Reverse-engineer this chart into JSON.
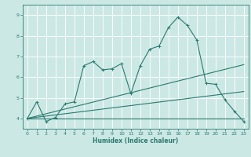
{
  "xlabel": "Humidex (Indice chaleur)",
  "bg_color": "#cce8e5",
  "grid_color": "#ffffff",
  "line_color": "#2a7a6f",
  "xlim": [
    -0.5,
    23.5
  ],
  "ylim": [
    3.5,
    9.5
  ],
  "xticks": [
    0,
    1,
    2,
    3,
    4,
    5,
    6,
    7,
    8,
    9,
    10,
    11,
    12,
    13,
    14,
    15,
    16,
    17,
    18,
    19,
    20,
    21,
    22,
    23
  ],
  "yticks": [
    4,
    5,
    6,
    7,
    8,
    9
  ],
  "series1_x": [
    0,
    1,
    2,
    3,
    4,
    5,
    6,
    7,
    8,
    9,
    10,
    11,
    12,
    13,
    14,
    15,
    16,
    17,
    18,
    19,
    20,
    21,
    22,
    23
  ],
  "series1_y": [
    4.0,
    4.8,
    3.85,
    4.05,
    4.7,
    4.8,
    6.55,
    6.75,
    6.35,
    6.4,
    6.65,
    5.2,
    6.55,
    7.35,
    7.5,
    8.4,
    8.9,
    8.5,
    7.8,
    5.7,
    5.65,
    4.9,
    4.35,
    3.85
  ],
  "series2_x": [
    0,
    23
  ],
  "series2_y": [
    4.0,
    6.6
  ],
  "series3_x": [
    0,
    23
  ],
  "series3_y": [
    4.0,
    5.3
  ],
  "series4_x": [
    0,
    23
  ],
  "series4_y": [
    4.0,
    4.0
  ]
}
